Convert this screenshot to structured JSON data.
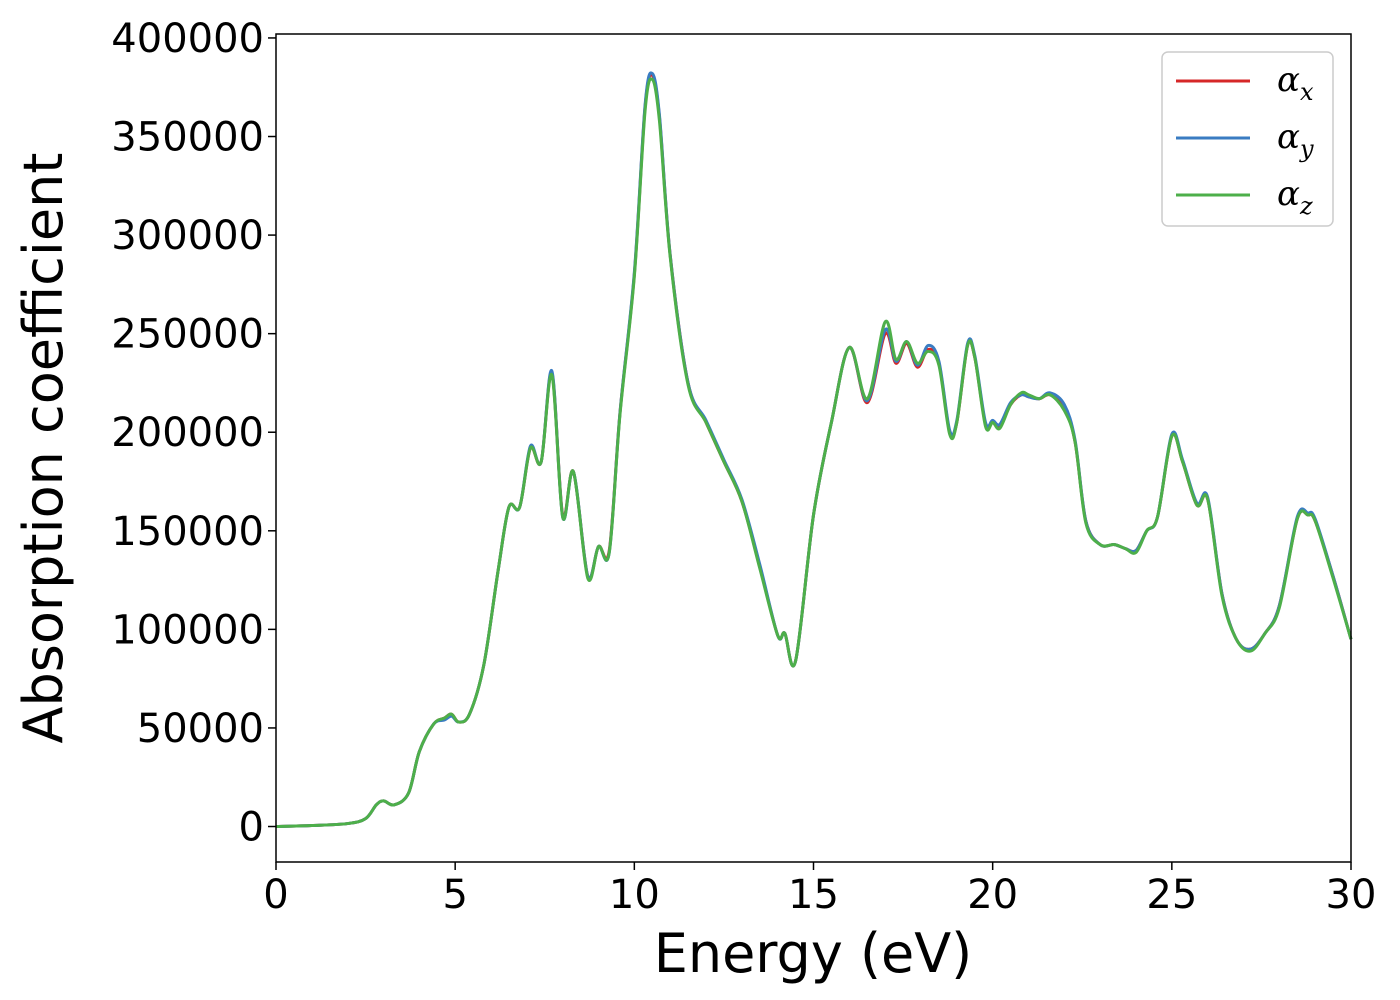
{
  "chart_data": {
    "type": "line",
    "title": "",
    "xlabel": "Energy (eV)",
    "ylabel": "Absorption coefficient",
    "xlim": [
      0,
      30
    ],
    "ylim": [
      -18000,
      402000
    ],
    "xticks": [
      0,
      5,
      10,
      15,
      20,
      25,
      30
    ],
    "yticks": [
      0,
      50000,
      100000,
      150000,
      200000,
      250000,
      300000,
      350000,
      400000
    ],
    "grid": false,
    "legend_position": "top-right",
    "series": [
      {
        "name": "α",
        "subscript": "x",
        "color": "#d62728",
        "x": [
          0,
          1,
          2,
          2.5,
          2.8,
          3.0,
          3.3,
          3.7,
          4.0,
          4.4,
          4.7,
          4.9,
          5.1,
          5.4,
          5.8,
          6.2,
          6.5,
          6.8,
          7.1,
          7.4,
          7.7,
          8.0,
          8.3,
          8.7,
          9.0,
          9.3,
          9.6,
          10.0,
          10.3,
          10.5,
          10.7,
          11.0,
          11.5,
          12.0,
          12.5,
          13.0,
          13.5,
          14.0,
          14.2,
          14.5,
          15.0,
          15.5,
          16.0,
          16.5,
          17.0,
          17.3,
          17.6,
          17.9,
          18.2,
          18.5,
          18.8,
          19.0,
          19.3,
          19.5,
          19.8,
          20.0,
          20.2,
          20.5,
          20.8,
          21.0,
          21.3,
          21.6,
          22.0,
          22.3,
          22.6,
          23.0,
          23.4,
          23.7,
          24.0,
          24.3,
          24.6,
          25.0,
          25.3,
          25.7,
          26.0,
          26.4,
          26.8,
          27.2,
          27.6,
          28.0,
          28.5,
          28.8,
          29.0,
          29.5,
          30.0
        ],
        "values": [
          0,
          500,
          1500,
          4000,
          11000,
          13000,
          11000,
          17000,
          38000,
          52000,
          55000,
          57000,
          53000,
          57000,
          82000,
          130000,
          162000,
          162000,
          192000,
          185000,
          230000,
          158000,
          180000,
          127000,
          142000,
          140000,
          210000,
          280000,
          365000,
          381000,
          360000,
          290000,
          225000,
          205000,
          185000,
          165000,
          132000,
          97000,
          98000,
          84000,
          158000,
          205000,
          243000,
          215000,
          250000,
          235000,
          245000,
          233000,
          242000,
          235000,
          200000,
          205000,
          244000,
          238000,
          204000,
          205000,
          203000,
          214000,
          219000,
          218000,
          217000,
          219000,
          213000,
          195000,
          155000,
          143000,
          143000,
          141000,
          140000,
          150000,
          157000,
          198000,
          185000,
          163000,
          166000,
          118000,
          95000,
          90000,
          98000,
          112000,
          156000,
          158000,
          155000,
          127000,
          95000
        ]
      },
      {
        "name": "α",
        "subscript": "y",
        "color": "#3a7cc2",
        "x": [
          0,
          1,
          2,
          2.5,
          2.8,
          3.0,
          3.3,
          3.7,
          4.0,
          4.4,
          4.7,
          4.9,
          5.1,
          5.4,
          5.8,
          6.2,
          6.5,
          6.8,
          7.1,
          7.4,
          7.7,
          8.0,
          8.3,
          8.7,
          9.0,
          9.3,
          9.6,
          10.0,
          10.3,
          10.5,
          10.7,
          11.0,
          11.5,
          12.0,
          12.5,
          13.0,
          13.5,
          14.0,
          14.2,
          14.5,
          15.0,
          15.5,
          16.0,
          16.5,
          17.0,
          17.3,
          17.6,
          17.9,
          18.2,
          18.5,
          18.8,
          19.0,
          19.3,
          19.5,
          19.8,
          20.0,
          20.2,
          20.5,
          20.8,
          21.0,
          21.3,
          21.6,
          22.0,
          22.3,
          22.6,
          23.0,
          23.4,
          23.7,
          24.0,
          24.3,
          24.6,
          25.0,
          25.3,
          25.7,
          26.0,
          26.4,
          26.8,
          27.2,
          27.6,
          28.0,
          28.5,
          28.8,
          29.0,
          29.5,
          30.0
        ],
        "values": [
          0,
          500,
          1500,
          4000,
          11000,
          13000,
          11000,
          17000,
          38000,
          52000,
          54000,
          56000,
          53000,
          57000,
          82000,
          130000,
          162000,
          162000,
          193000,
          185000,
          231000,
          157000,
          180000,
          127000,
          142000,
          139000,
          210000,
          281000,
          366000,
          382000,
          361000,
          290000,
          225000,
          206000,
          186000,
          166000,
          133000,
          97000,
          98000,
          84000,
          158000,
          205000,
          243000,
          216000,
          252000,
          236000,
          246000,
          234000,
          244000,
          236000,
          201000,
          206000,
          245000,
          239000,
          205000,
          206000,
          204000,
          215000,
          219000,
          218000,
          217000,
          220000,
          214000,
          196000,
          155000,
          143000,
          143000,
          141000,
          140000,
          150000,
          157000,
          199000,
          186000,
          164000,
          167000,
          118000,
          95000,
          90000,
          98000,
          112000,
          157000,
          159000,
          156000,
          127000,
          95000
        ]
      },
      {
        "name": "α",
        "subscript": "z",
        "color": "#4daf4a",
        "x": [
          0,
          1,
          2,
          2.5,
          2.8,
          3.0,
          3.3,
          3.7,
          4.0,
          4.4,
          4.7,
          4.9,
          5.1,
          5.4,
          5.8,
          6.2,
          6.5,
          6.8,
          7.1,
          7.4,
          7.7,
          8.0,
          8.3,
          8.7,
          9.0,
          9.3,
          9.6,
          10.0,
          10.3,
          10.5,
          10.7,
          11.0,
          11.5,
          12.0,
          12.5,
          13.0,
          13.5,
          14.0,
          14.2,
          14.5,
          15.0,
          15.5,
          16.0,
          16.5,
          17.0,
          17.3,
          17.6,
          17.9,
          18.2,
          18.5,
          18.8,
          19.0,
          19.3,
          19.5,
          19.8,
          20.0,
          20.2,
          20.5,
          20.8,
          21.0,
          21.3,
          21.6,
          22.0,
          22.3,
          22.6,
          23.0,
          23.4,
          23.7,
          24.0,
          24.3,
          24.6,
          25.0,
          25.3,
          25.7,
          26.0,
          26.4,
          26.8,
          27.2,
          27.6,
          28.0,
          28.5,
          28.8,
          29.0,
          29.5,
          30.0
        ],
        "values": [
          0,
          500,
          1500,
          4000,
          11000,
          13000,
          11000,
          17000,
          38000,
          52000,
          55000,
          57000,
          53000,
          57000,
          82000,
          130000,
          162000,
          162000,
          192000,
          185000,
          229000,
          157000,
          180000,
          126000,
          142000,
          139000,
          209000,
          279000,
          363000,
          379000,
          358000,
          289000,
          224000,
          205000,
          185000,
          165000,
          131000,
          97000,
          98000,
          84000,
          158000,
          205000,
          243000,
          217000,
          256000,
          237000,
          246000,
          235000,
          241000,
          234000,
          199000,
          205000,
          244000,
          238000,
          203000,
          205000,
          202000,
          214000,
          220000,
          219000,
          217000,
          219000,
          211000,
          195000,
          154000,
          143000,
          143000,
          141000,
          139000,
          150000,
          157000,
          198000,
          185000,
          163000,
          166000,
          117000,
          95000,
          89000,
          98000,
          111000,
          156000,
          158000,
          155000,
          126000,
          95000
        ]
      }
    ]
  }
}
